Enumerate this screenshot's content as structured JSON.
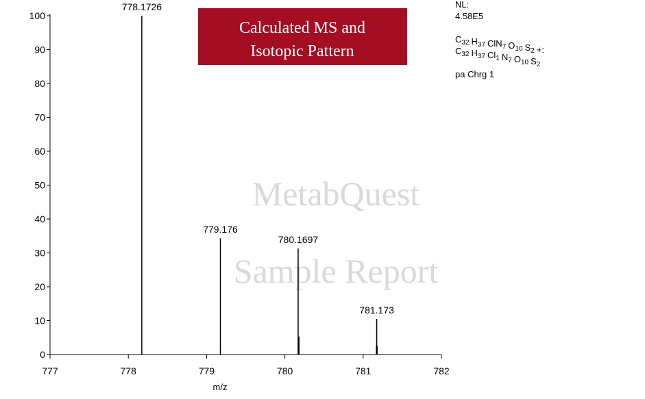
{
  "chart_data": {
    "type": "spectrum",
    "banner": [
      "Calculated MS and",
      "Isotopic Pattern"
    ],
    "watermark": [
      "MetabQuest",
      "Sample Report"
    ],
    "x_label": "m/z",
    "info": {
      "nl_label": "NL:",
      "nl_value": "4.58E5",
      "formulas": [
        [
          [
            "C",
            "32"
          ],
          [
            "H",
            "37"
          ],
          [
            "ClN",
            "7"
          ],
          [
            "O",
            "10"
          ],
          [
            "S",
            "2"
          ],
          [
            "+:",
            null
          ]
        ],
        [
          [
            "C",
            "32"
          ],
          [
            "H",
            "37"
          ],
          [
            "Cl",
            "1"
          ],
          [
            "N",
            "7"
          ],
          [
            "O",
            "10"
          ],
          [
            "S",
            "2"
          ]
        ]
      ],
      "charge": "pa Chrg 1"
    },
    "peaks": {
      "x": [
        778.1726,
        779.176,
        780.1697,
        781.173
      ],
      "values": [
        100,
        34.3,
        31.3,
        10.5
      ]
    },
    "minor_peaks": {
      "x": [
        780.176,
        781.174
      ],
      "values": [
        5.3,
        2.6
      ]
    },
    "xlim": [
      777,
      782
    ],
    "xticks": [
      777,
      778,
      779,
      780,
      781,
      782
    ],
    "ylim": [
      0,
      100
    ],
    "yticks": [
      0,
      10,
      20,
      30,
      40,
      50,
      60,
      70,
      80,
      90,
      100
    ]
  }
}
